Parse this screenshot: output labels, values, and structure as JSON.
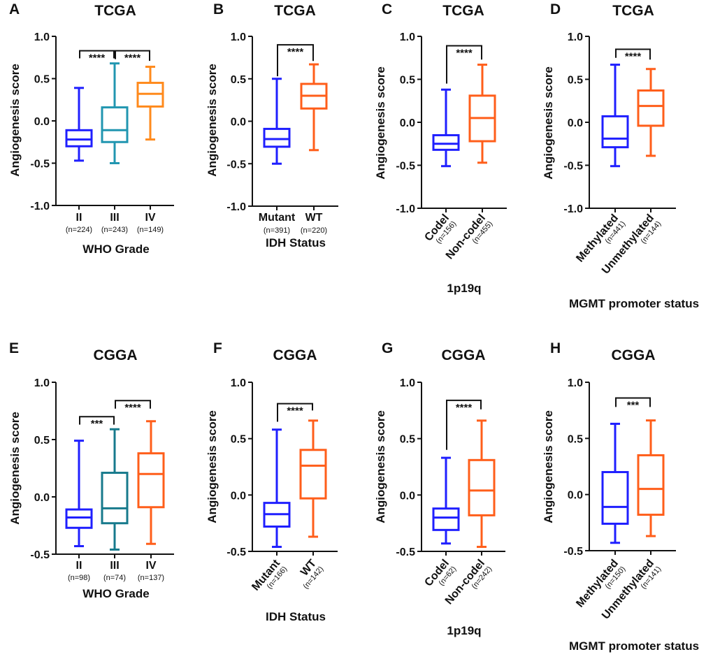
{
  "colors": {
    "blue": "#1f1fff",
    "teal_tcga": "#2196b0",
    "teal_cgga": "#177a8c",
    "orange_light": "#ff8a1c",
    "orange": "#ff5e1a",
    "axis": "#111111"
  },
  "chart_data": [
    {
      "type": "box",
      "panel": "A",
      "title": "TCGA",
      "ylabel": "Angiogenesis score",
      "xlabel": "WHO Grade",
      "ylim": [
        -1.0,
        1.0
      ],
      "y_ticks": [
        "1.0",
        "0.5",
        "0.0",
        "-0.5",
        "-1.0"
      ],
      "groups": [
        {
          "label": "II",
          "n": "(n=224)",
          "color": "blue",
          "min": -0.47,
          "q1": -0.3,
          "median": -0.22,
          "q3": -0.11,
          "max": 0.39
        },
        {
          "label": "III",
          "n": "(n=243)",
          "color": "teal_tcga",
          "min": -0.5,
          "q1": -0.25,
          "median": -0.11,
          "q3": 0.16,
          "max": 0.68
        },
        {
          "label": "IV",
          "n": "(n=149)",
          "color": "orange_light",
          "min": -0.22,
          "q1": 0.17,
          "median": 0.32,
          "q3": 0.45,
          "max": 0.64
        }
      ],
      "significance": [
        {
          "from": 0,
          "to": 1,
          "y": 0.83,
          "left_end": 0.74,
          "right_end": 0.74,
          "label": "****"
        },
        {
          "from": 1,
          "to": 2,
          "y": 0.83,
          "left_end": 0.73,
          "right_end": 0.71,
          "label": "****"
        }
      ]
    },
    {
      "type": "box",
      "panel": "B",
      "title": "TCGA",
      "ylabel": "Angiogenesis score",
      "xlabel": "IDH Status",
      "ylim": [
        -1.0,
        1.0
      ],
      "y_ticks": [
        "1.0",
        "0.5",
        "0.0",
        "-0.5",
        "-1.0"
      ],
      "groups": [
        {
          "label": "Mutant",
          "n": "(n=391)",
          "color": "blue",
          "min": -0.5,
          "q1": -0.3,
          "median": -0.21,
          "q3": -0.09,
          "max": 0.5
        },
        {
          "label": "WT",
          "n": "(n=220)",
          "color": "orange",
          "min": -0.34,
          "q1": 0.15,
          "median": 0.3,
          "q3": 0.44,
          "max": 0.67
        }
      ],
      "significance": [
        {
          "from": 0,
          "to": 1,
          "y": 0.9,
          "left_end": 0.53,
          "right_end": 0.71,
          "label": "****"
        }
      ]
    },
    {
      "type": "box",
      "panel": "C",
      "title": "TCGA",
      "ylabel": "Angiogenesis score",
      "xlabel": "1p19q",
      "ylim": [
        -1.0,
        1.0
      ],
      "y_ticks": [
        "1.0",
        "0.5",
        "0.0",
        "-0.5",
        "-1.0"
      ],
      "groups": [
        {
          "label": "Codel",
          "n": "(n=156)",
          "color": "blue",
          "min": -0.51,
          "q1": -0.32,
          "median": -0.25,
          "q3": -0.15,
          "max": 0.38
        },
        {
          "label": "Non-codel",
          "n": "(n=455)",
          "color": "orange",
          "min": -0.47,
          "q1": -0.22,
          "median": 0.05,
          "q3": 0.31,
          "max": 0.67
        }
      ],
      "significance": [
        {
          "from": 0,
          "to": 1,
          "y": 0.89,
          "left_end": 0.45,
          "right_end": 0.73,
          "label": "****"
        }
      ]
    },
    {
      "type": "box",
      "panel": "D",
      "title": "TCGA",
      "ylabel": "Angiogenesis score",
      "xlabel": "MGMT promoter status",
      "ylim": [
        -1.0,
        1.0
      ],
      "y_ticks": [
        "1.0",
        "0.5",
        "0.0",
        "-0.5",
        "-1.0"
      ],
      "groups": [
        {
          "label": "Methylated",
          "n": "(n=441)",
          "color": "blue",
          "min": -0.51,
          "q1": -0.29,
          "median": -0.19,
          "q3": 0.07,
          "max": 0.67
        },
        {
          "label": "Unmethylated",
          "n": "(n=144)",
          "color": "orange",
          "min": -0.39,
          "q1": -0.04,
          "median": 0.19,
          "q3": 0.37,
          "max": 0.62
        }
      ],
      "significance": [
        {
          "from": 0,
          "to": 1,
          "y": 0.85,
          "left_end": 0.75,
          "right_end": 0.73,
          "label": "****"
        }
      ]
    },
    {
      "type": "box",
      "panel": "E",
      "title": "CGGA",
      "ylabel": "Angiogenesis score",
      "xlabel": "WHO Grade",
      "ylim": [
        -0.5,
        1.0
      ],
      "y_ticks": [
        "1.0",
        "0.5",
        "0.0",
        "-0.5"
      ],
      "groups": [
        {
          "label": "II",
          "n": "(n=98)",
          "color": "blue",
          "min": -0.43,
          "q1": -0.27,
          "median": -0.18,
          "q3": -0.11,
          "max": 0.49
        },
        {
          "label": "III",
          "n": "(n=74)",
          "color": "teal_cgga",
          "min": -0.46,
          "q1": -0.23,
          "median": -0.1,
          "q3": 0.21,
          "max": 0.59
        },
        {
          "label": "IV",
          "n": "(n=137)",
          "color": "orange",
          "min": -0.41,
          "q1": -0.09,
          "median": 0.2,
          "q3": 0.38,
          "max": 0.66
        }
      ],
      "significance": [
        {
          "from": 0,
          "to": 1,
          "y": 0.7,
          "left_end": 0.63,
          "right_end": 0.63,
          "label": "***"
        },
        {
          "from": 1,
          "to": 2,
          "y": 0.84,
          "left_end": 0.77,
          "right_end": 0.77,
          "label": "****"
        }
      ]
    },
    {
      "type": "box",
      "panel": "F",
      "title": "CGGA",
      "ylabel": "Angiogenesis score",
      "xlabel": "IDH Status",
      "ylim": [
        -0.5,
        1.0
      ],
      "y_ticks": [
        "1.0",
        "0.5",
        "0.0",
        "-0.5"
      ],
      "groups": [
        {
          "label": "Mutant",
          "n": "(n=166)",
          "color": "blue",
          "min": -0.46,
          "q1": -0.28,
          "median": -0.17,
          "q3": -0.07,
          "max": 0.58
        },
        {
          "label": "WT",
          "n": "(n=142)",
          "color": "orange",
          "min": -0.37,
          "q1": -0.03,
          "median": 0.26,
          "q3": 0.4,
          "max": 0.66
        }
      ],
      "significance": [
        {
          "from": 0,
          "to": 1,
          "y": 0.81,
          "left_end": 0.65,
          "right_end": 0.75,
          "label": "****"
        }
      ]
    },
    {
      "type": "box",
      "panel": "G",
      "title": "CGGA",
      "ylabel": "Angiogenesis score",
      "xlabel": "1p19q",
      "ylim": [
        -0.5,
        1.0
      ],
      "y_ticks": [
        "1.0",
        "0.5",
        "0.0",
        "-0.5"
      ],
      "groups": [
        {
          "label": "Codel",
          "n": "(n=62)",
          "color": "blue",
          "min": -0.43,
          "q1": -0.31,
          "median": -0.2,
          "q3": -0.12,
          "max": 0.33
        },
        {
          "label": "Non-codel",
          "n": "(n=242)",
          "color": "orange",
          "min": -0.46,
          "q1": -0.18,
          "median": 0.04,
          "q3": 0.31,
          "max": 0.66
        }
      ],
      "significance": [
        {
          "from": 0,
          "to": 1,
          "y": 0.84,
          "left_end": 0.4,
          "right_end": 0.76,
          "label": "****"
        }
      ]
    },
    {
      "type": "box",
      "panel": "H",
      "title": "CGGA",
      "ylabel": "Angiogenesis score",
      "xlabel": "MGMT promoter status",
      "ylim": [
        -0.5,
        1.0
      ],
      "y_ticks": [
        "1.0",
        "0.5",
        "0.0",
        "-0.5"
      ],
      "groups": [
        {
          "label": "Methylated",
          "n": "(n=150)",
          "color": "blue",
          "min": -0.43,
          "q1": -0.26,
          "median": -0.11,
          "q3": 0.2,
          "max": 0.63
        },
        {
          "label": "Unmethylated",
          "n": "(n=141)",
          "color": "orange",
          "min": -0.37,
          "q1": -0.18,
          "median": 0.05,
          "q3": 0.35,
          "max": 0.66
        }
      ],
      "significance": [
        {
          "from": 0,
          "to": 1,
          "y": 0.86,
          "left_end": 0.78,
          "right_end": 0.78,
          "label": "***"
        }
      ]
    }
  ]
}
